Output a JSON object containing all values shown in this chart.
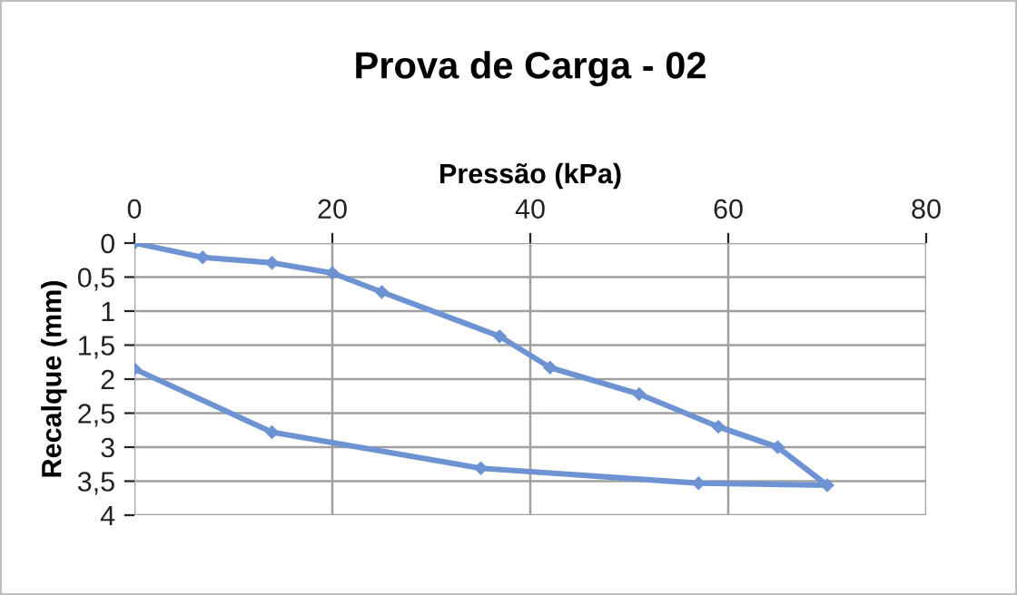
{
  "chart_data": {
    "type": "line",
    "title": "Prova de Carga - 02",
    "xlabel": "Pressão (kPa)",
    "ylabel": "Recalque (mm)",
    "series": [
      {
        "color": "#6d93d3",
        "x": [
          0,
          6.9,
          13.9,
          20,
          25,
          36.9,
          42,
          51,
          59,
          65,
          70,
          57,
          35,
          13.9,
          0
        ],
        "values": [
          0,
          0.21,
          0.29,
          0.44,
          0.72,
          1.37,
          1.83,
          2.22,
          2.7,
          3.0,
          3.56,
          3.53,
          3.31,
          2.78,
          1.85
        ]
      }
    ],
    "xlim": [
      0,
      80
    ],
    "xticks": [
      0,
      20,
      40,
      60,
      80
    ],
    "ylim": [
      4,
      0
    ],
    "yticks": [
      {
        "value": 0,
        "label": "0"
      },
      {
        "value": 0.5,
        "label": "0,5"
      },
      {
        "value": 1,
        "label": "1"
      },
      {
        "value": 1.5,
        "label": "1,5"
      },
      {
        "value": 2,
        "label": "2"
      },
      {
        "value": 2.5,
        "label": "2,5"
      },
      {
        "value": 3,
        "label": "3"
      },
      {
        "value": 3.5,
        "label": "3,5"
      },
      {
        "value": 4,
        "label": "4"
      }
    ],
    "grid": true,
    "marker": "diamond",
    "line_style": "solid"
  }
}
